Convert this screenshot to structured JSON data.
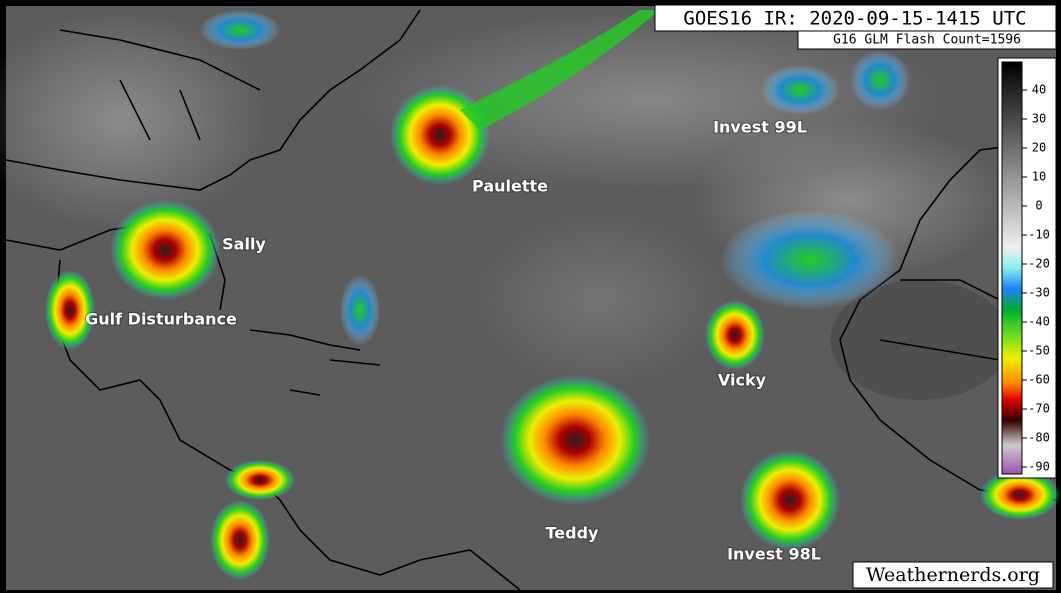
{
  "header": {
    "title": "GOES16 IR: 2020-09-15-1415 UTC",
    "flash_count": "G16 GLM Flash Count=1596"
  },
  "labels": [
    {
      "text": "Invest 99L"
    },
    {
      "text": "Paulette"
    },
    {
      "text": "Sally"
    },
    {
      "text": "Gulf Disturbance"
    },
    {
      "text": "Vicky"
    },
    {
      "text": "Teddy"
    },
    {
      "text": "Invest 98L"
    }
  ],
  "colorbar": {
    "ticks": [
      40,
      30,
      20,
      10,
      0,
      -10,
      -20,
      -30,
      -40,
      -50,
      -60,
      -70,
      -80,
      -90
    ]
  },
  "footer": {
    "credit": "Weathernerds.org"
  }
}
